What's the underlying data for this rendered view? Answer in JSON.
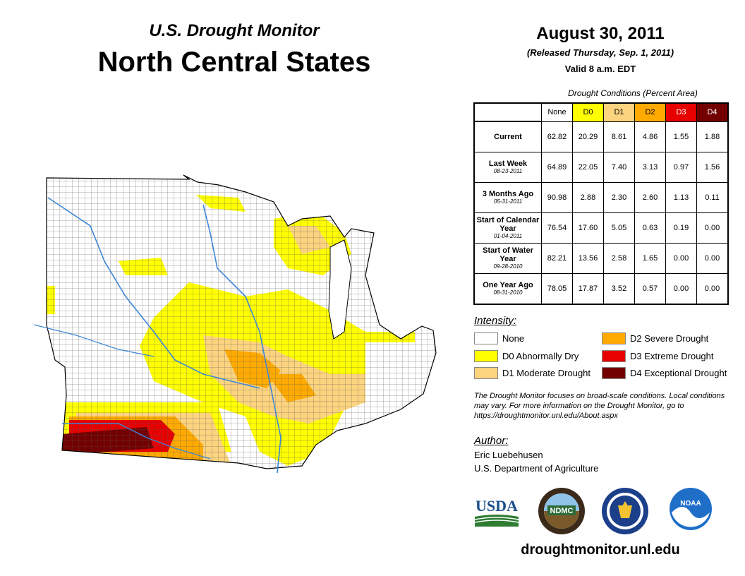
{
  "header": {
    "subtitle": "U.S. Drought Monitor",
    "title": "North Central States",
    "date": "August 30, 2011",
    "released": "(Released Thursday, Sep. 1, 2011)",
    "valid": "Valid 8 a.m. EDT"
  },
  "table": {
    "caption": "Drought Conditions (Percent Area)",
    "columns": [
      "None",
      "D0",
      "D1",
      "D2",
      "D3",
      "D4"
    ],
    "column_colors": [
      "#ffffff",
      "#ffff00",
      "#fcd37f",
      "#ffaa00",
      "#e60000",
      "#730000"
    ],
    "rows": [
      {
        "label": "Current",
        "date": "",
        "values": [
          "62.82",
          "20.29",
          "8.61",
          "4.86",
          "1.55",
          "1.88"
        ]
      },
      {
        "label": "Last Week",
        "date": "08-23-2011",
        "values": [
          "64.89",
          "22.05",
          "7.40",
          "3.13",
          "0.97",
          "1.56"
        ]
      },
      {
        "label": "3 Months Ago",
        "date": "05-31-2011",
        "values": [
          "90.98",
          "2.88",
          "2.30",
          "2.60",
          "1.13",
          "0.11"
        ]
      },
      {
        "label": "Start of Calendar Year",
        "date": "01-04-2011",
        "values": [
          "76.54",
          "17.60",
          "5.05",
          "0.63",
          "0.19",
          "0.00"
        ]
      },
      {
        "label": "Start of Water Year",
        "date": "09-28-2010",
        "values": [
          "82.21",
          "13.56",
          "2.58",
          "1.65",
          "0.00",
          "0.00"
        ]
      },
      {
        "label": "One Year Ago",
        "date": "08-31-2010",
        "values": [
          "78.05",
          "17.87",
          "3.52",
          "0.57",
          "0.00",
          "0.00"
        ]
      }
    ]
  },
  "legend": {
    "heading": "Intensity:",
    "items": [
      {
        "label": "None",
        "color": "#ffffff"
      },
      {
        "label": "D0 Abnormally Dry",
        "color": "#ffff00"
      },
      {
        "label": "D1 Moderate Drought",
        "color": "#fcd37f"
      },
      {
        "label": "D2 Severe Drought",
        "color": "#ffaa00"
      },
      {
        "label": "D3 Extreme Drought",
        "color": "#e60000"
      },
      {
        "label": "D4 Exceptional Drought",
        "color": "#730000"
      }
    ]
  },
  "disclaimer": "The Drought Monitor focuses on broad-scale conditions. Local conditions may vary. For more information on the Drought Monitor, go to https://droughtmonitor.unl.edu/About.aspx",
  "author": {
    "heading": "Author:",
    "name": "Eric Luebehusen",
    "org": "U.S. Department of Agriculture"
  },
  "logos": {
    "usda": "USDA",
    "ndmc": "NDMC",
    "noaa": "NOAA"
  },
  "website": "droughtmonitor.unl.edu"
}
